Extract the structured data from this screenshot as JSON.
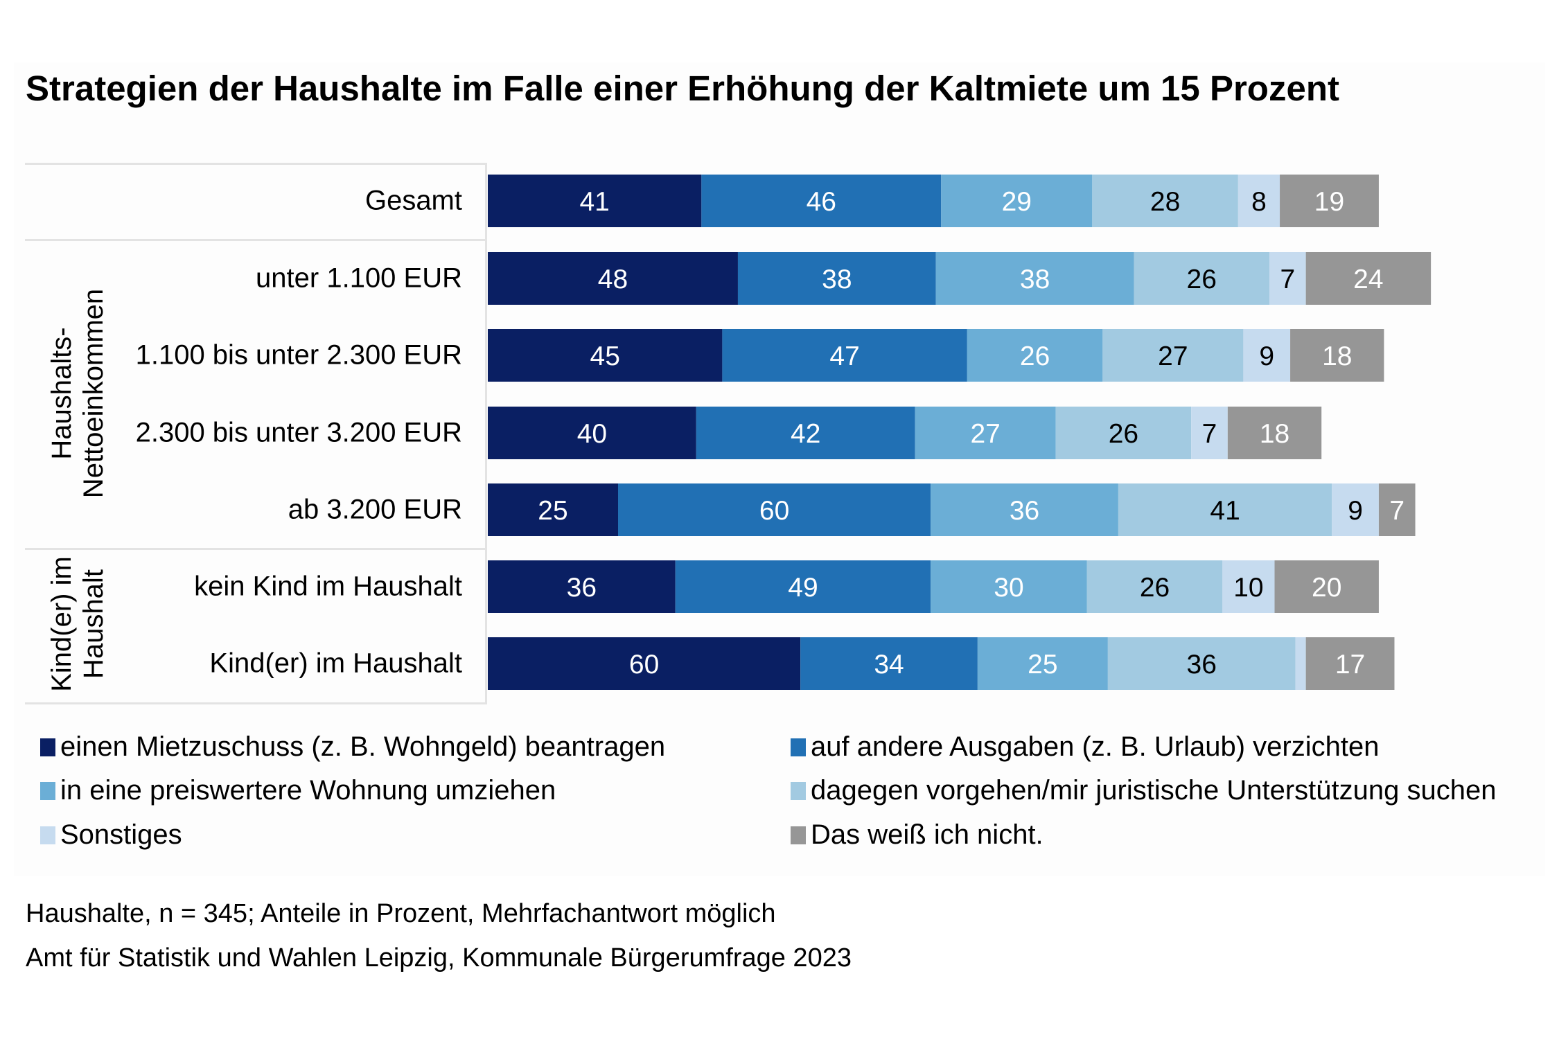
{
  "chart_data": {
    "type": "bar",
    "orientation": "horizontal-stacked",
    "title": "Strategien der Haushalte im Falle einer Erhöhung der Kaltmiete um 15 Prozent",
    "xlabel": "",
    "ylabel": "",
    "unit": "Prozent",
    "grid": false,
    "legend_position": "bottom",
    "groups": [
      {
        "label": "",
        "rows": [
          0
        ]
      },
      {
        "label": "Haushalts-\nNettoeinkommen",
        "label_lines": [
          "Haushalts-",
          "Nettoeinkommen"
        ],
        "rows": [
          1,
          2,
          3,
          4
        ]
      },
      {
        "label": "Kind(er) im\nHaushalt",
        "label_lines": [
          "Kind(er) im",
          "Haushalt"
        ],
        "rows": [
          5,
          6
        ]
      }
    ],
    "categories": [
      "Gesamt",
      "unter 1.100 EUR",
      "1.100 bis unter 2.300 EUR",
      "2.300 bis unter 3.200 EUR",
      "ab 3.200 EUR",
      "kein Kind im Haushalt",
      "Kind(er) im Haushalt"
    ],
    "series": [
      {
        "name": "einen Mietzuschuss (z. B. Wohngeld) beantragen",
        "color": "#0a1f63",
        "label_color": "#ffffff",
        "values": [
          41,
          48,
          45,
          40,
          25,
          36,
          60
        ],
        "labels_shown": [
          true,
          true,
          true,
          true,
          true,
          true,
          true
        ]
      },
      {
        "name": "auf andere Ausgaben (z. B. Urlaub) verzichten",
        "color": "#2170b4",
        "label_color": "#ffffff",
        "values": [
          46,
          38,
          47,
          42,
          60,
          49,
          34
        ],
        "labels_shown": [
          true,
          true,
          true,
          true,
          true,
          true,
          true
        ]
      },
      {
        "name": "in eine preiswertere Wohnung umziehen",
        "color": "#6baed6",
        "label_color": "#ffffff",
        "values": [
          29,
          38,
          26,
          27,
          36,
          30,
          25
        ],
        "labels_shown": [
          true,
          true,
          true,
          true,
          true,
          true,
          true
        ]
      },
      {
        "name": "dagegen vorgehen/mir juristische Unterstützung suchen",
        "color": "#a2cae1",
        "label_color": "#000000",
        "values": [
          28,
          26,
          27,
          26,
          41,
          26,
          36
        ],
        "labels_shown": [
          true,
          true,
          true,
          true,
          true,
          true,
          true
        ]
      },
      {
        "name": "Sonstiges",
        "color": "#c6dbef",
        "label_color": "#000000",
        "values": [
          8,
          7,
          9,
          7,
          9,
          10,
          2
        ],
        "labels_shown": [
          true,
          true,
          true,
          true,
          true,
          true,
          false
        ]
      },
      {
        "name": "Das weiß ich nicht.",
        "color": "#969696",
        "label_color": "#ffffff",
        "values": [
          19,
          24,
          18,
          18,
          7,
          20,
          17
        ],
        "labels_shown": [
          true,
          true,
          true,
          true,
          true,
          true,
          true
        ]
      }
    ],
    "footnotes": [
      "Haushalte, n = 345; Anteile in Prozent, Mehrfachantwort möglich",
      "Amt für Statistik und Wahlen Leipzig, Kommunale Bürgerumfrage 2023"
    ]
  }
}
